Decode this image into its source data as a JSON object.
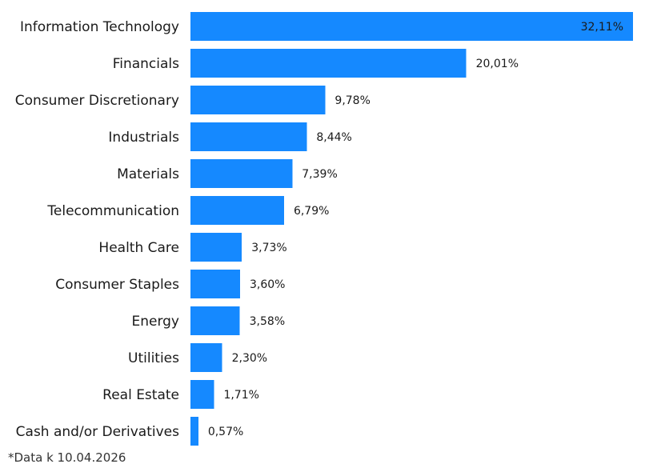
{
  "chart_data": {
    "type": "bar",
    "orientation": "horizontal",
    "categories": [
      "Information Technology",
      "Financials",
      "Consumer Discretionary",
      "Industrials",
      "Materials",
      "Telecommunication",
      "Health Care",
      "Consumer Staples",
      "Energy",
      "Utilities",
      "Real Estate",
      "Cash and/or Derivatives"
    ],
    "values": [
      32.11,
      20.01,
      9.78,
      8.44,
      7.39,
      6.79,
      3.73,
      3.6,
      3.58,
      2.3,
      1.71,
      0.57
    ],
    "value_labels": [
      "32,11%",
      "20,01%",
      "9,78%",
      "8,44%",
      "7,39%",
      "6,79%",
      "3,73%",
      "3,60%",
      "3,58%",
      "2,30%",
      "1,71%",
      "0,57%"
    ],
    "title": "",
    "xlabel": "",
    "ylabel": "",
    "xlim": [
      0,
      32.11
    ],
    "grid": false,
    "legend": "none",
    "bar_color": "#1589ff"
  },
  "footnote": "*Data k 10.04.2026"
}
